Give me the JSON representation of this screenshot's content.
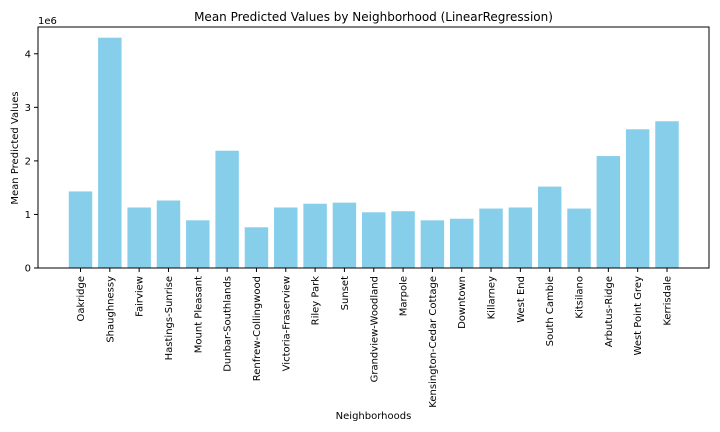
{
  "chart_data": {
    "type": "bar",
    "title": "Mean Predicted Values by Neighborhood (LinearRegression)",
    "xlabel": "Neighborhoods",
    "ylabel": "Mean Predicted Values",
    "y_scale_label": "1e6",
    "y_multiplier": 1000000,
    "ylim": [
      0,
      4.5
    ],
    "yticks": [
      0,
      1,
      2,
      3,
      4
    ],
    "bar_color": "#87ceeb",
    "grid": false,
    "categories": [
      "Oakridge",
      "Shaughnessy",
      "Fairview",
      "Hastings-Sunrise",
      "Mount Pleasant",
      "Dunbar-Southlands",
      "Renfrew-Collingwood",
      "Victoria-Fraserview",
      "Riley Park",
      "Sunset",
      "Grandview-Woodland",
      "Marpole",
      "Kensington-Cedar Cottage",
      "Downtown",
      "Killarney",
      "West End",
      "South Cambie",
      "Kitsilano",
      "Arbutus-Ridge",
      "West Point Grey",
      "Kerrisdale"
    ],
    "values": [
      1.43,
      4.3,
      1.13,
      1.26,
      0.89,
      2.19,
      0.76,
      1.13,
      1.2,
      1.22,
      1.04,
      1.06,
      0.89,
      0.92,
      1.11,
      1.13,
      1.52,
      1.11,
      2.09,
      2.59,
      2.74
    ]
  }
}
